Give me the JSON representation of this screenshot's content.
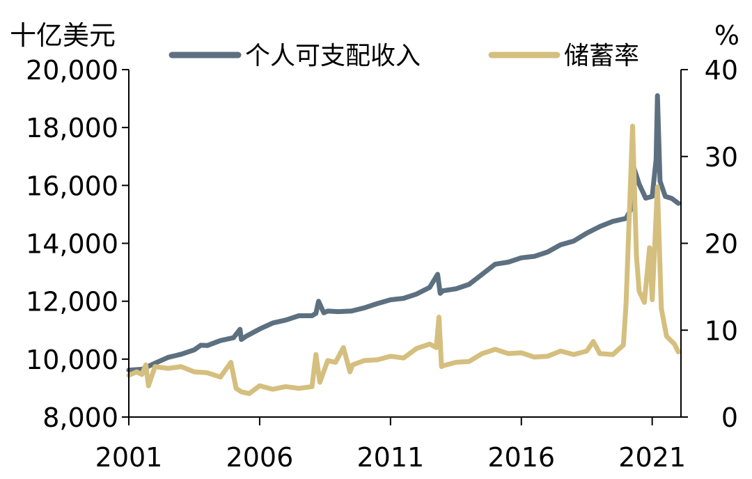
{
  "chart_data": {
    "type": "line",
    "left_axis_title": "十亿美元",
    "right_axis_title": "%",
    "x_ticks": [
      "2001",
      "2006",
      "2011",
      "2016",
      "2021"
    ],
    "y_left_ticks": [
      "8,000",
      "10,000",
      "12,000",
      "14,000",
      "16,000",
      "18,000",
      "20,000"
    ],
    "y_right_ticks": [
      "0",
      "10",
      "20",
      "30",
      "40"
    ],
    "xlim": [
      2001.0,
      2022.1
    ],
    "ylim_left": [
      8000,
      20000
    ],
    "ylim_right": [
      0,
      40
    ],
    "legend_position": "top",
    "grid": false,
    "series": [
      {
        "name": "个人可支配收入",
        "axis": "left",
        "color": "#5c7080",
        "x": [
          2001.0,
          2001.5,
          2002.0,
          2002.5,
          2003.0,
          2003.5,
          2003.75,
          2004.0,
          2004.5,
          2005.0,
          2005.25,
          2005.3,
          2005.5,
          2006.0,
          2006.5,
          2007.0,
          2007.5,
          2008.0,
          2008.15,
          2008.25,
          2008.45,
          2008.6,
          2009.0,
          2009.5,
          2010.0,
          2010.5,
          2011.0,
          2011.5,
          2012.0,
          2012.5,
          2012.8,
          2012.9,
          2013.0,
          2013.5,
          2014.0,
          2014.5,
          2015.0,
          2015.5,
          2016.0,
          2016.5,
          2017.0,
          2017.5,
          2018.0,
          2018.5,
          2019.0,
          2019.5,
          2020.0,
          2020.2,
          2020.3,
          2020.5,
          2020.75,
          2021.0,
          2021.15,
          2021.2,
          2021.3,
          2021.5,
          2021.75,
          2022.0
        ],
        "values": [
          9620,
          9650,
          9860,
          10060,
          10170,
          10320,
          10480,
          10470,
          10640,
          10740,
          11030,
          10680,
          10800,
          11040,
          11250,
          11350,
          11500,
          11500,
          11580,
          12000,
          11600,
          11660,
          11640,
          11660,
          11770,
          11920,
          12050,
          12100,
          12250,
          12480,
          12930,
          12270,
          12360,
          12430,
          12580,
          12930,
          13280,
          13350,
          13500,
          13550,
          13700,
          13950,
          14080,
          14350,
          14580,
          14760,
          14860,
          15200,
          16600,
          16050,
          15560,
          15620,
          16900,
          19100,
          16150,
          15620,
          15550,
          15380
        ]
      },
      {
        "name": "储蓄率",
        "axis": "right",
        "color": "#d5bf7f",
        "x": [
          2001.0,
          2001.3,
          2001.5,
          2001.65,
          2001.75,
          2002.0,
          2002.5,
          2003.0,
          2003.5,
          2004.0,
          2004.5,
          2004.9,
          2005.1,
          2005.3,
          2005.6,
          2006.0,
          2006.5,
          2007.0,
          2007.5,
          2008.0,
          2008.15,
          2008.3,
          2008.6,
          2008.9,
          2009.2,
          2009.45,
          2009.55,
          2010.0,
          2010.5,
          2011.0,
          2011.5,
          2012.0,
          2012.5,
          2012.75,
          2012.85,
          2012.95,
          2013.0,
          2013.5,
          2014.0,
          2014.5,
          2015.0,
          2015.5,
          2016.0,
          2016.5,
          2017.0,
          2017.5,
          2018.0,
          2018.5,
          2018.75,
          2019.0,
          2019.5,
          2019.9,
          2020.0,
          2020.25,
          2020.4,
          2020.5,
          2020.7,
          2020.9,
          2021.0,
          2021.2,
          2021.35,
          2021.55,
          2021.85,
          2022.0
        ],
        "values": [
          4.8,
          5.2,
          4.9,
          6.0,
          3.6,
          5.8,
          5.6,
          5.8,
          5.2,
          5.1,
          4.6,
          6.3,
          3.3,
          2.9,
          2.7,
          3.6,
          3.2,
          3.5,
          3.3,
          3.5,
          7.2,
          4.0,
          6.5,
          6.3,
          8.0,
          5.2,
          6.0,
          6.5,
          6.6,
          7.0,
          6.8,
          7.9,
          8.4,
          8.0,
          11.5,
          5.8,
          5.9,
          6.3,
          6.4,
          7.3,
          7.8,
          7.3,
          7.4,
          6.9,
          7.0,
          7.6,
          7.2,
          7.6,
          8.7,
          7.3,
          7.2,
          8.3,
          13.0,
          33.5,
          18.5,
          14.5,
          13.2,
          19.5,
          13.5,
          26.5,
          12.5,
          9.3,
          8.4,
          7.5
        ]
      }
    ]
  }
}
